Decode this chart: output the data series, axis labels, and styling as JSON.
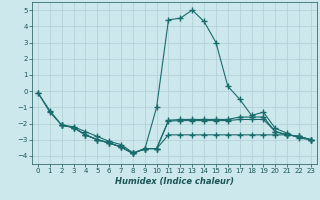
{
  "background_color": "#cce8ec",
  "grid_color": "#b0ced4",
  "line_color": "#1a6b6b",
  "line_width": 0.8,
  "marker": "+",
  "marker_size": 4,
  "marker_edge_width": 1.0,
  "xlabel": "Humidex (Indice chaleur)",
  "xlim": [
    -0.5,
    23.5
  ],
  "ylim": [
    -4.5,
    5.5
  ],
  "yticks": [
    -4,
    -3,
    -2,
    -1,
    0,
    1,
    2,
    3,
    4,
    5
  ],
  "xticks": [
    0,
    1,
    2,
    3,
    4,
    5,
    6,
    7,
    8,
    9,
    10,
    11,
    12,
    13,
    14,
    15,
    16,
    17,
    18,
    19,
    20,
    21,
    22,
    23
  ],
  "series": [
    {
      "x": [
        0,
        1,
        2,
        3,
        4,
        5,
        6,
        7,
        8,
        9,
        10,
        11,
        12,
        13,
        14,
        15,
        16,
        17,
        18,
        19,
        20,
        21,
        22,
        23
      ],
      "y": [
        -0.1,
        -1.2,
        -2.1,
        -2.2,
        -2.5,
        -2.8,
        -3.1,
        -3.3,
        -3.8,
        -3.6,
        -1.0,
        4.4,
        4.5,
        5.0,
        4.3,
        3.0,
        0.3,
        -0.5,
        -1.5,
        -1.3,
        -2.3,
        -2.6,
        -2.9,
        -3.0
      ]
    },
    {
      "x": [
        0,
        1,
        2,
        3,
        4,
        5,
        6,
        7,
        8,
        9,
        10,
        11,
        12,
        13,
        14,
        15,
        16,
        17,
        18,
        19,
        20,
        21,
        22,
        23
      ],
      "y": [
        -0.1,
        -1.3,
        -2.1,
        -2.25,
        -2.7,
        -3.0,
        -3.2,
        -3.45,
        -3.85,
        -3.55,
        -3.55,
        -1.8,
        -1.75,
        -1.75,
        -1.75,
        -1.75,
        -1.75,
        -1.6,
        -1.6,
        -1.6,
        -2.5,
        -2.7,
        -2.8,
        -3.0
      ]
    },
    {
      "x": [
        2,
        3,
        4,
        5,
        6,
        7,
        8,
        9,
        10,
        11,
        12,
        13,
        14,
        15,
        16,
        17,
        18,
        19,
        20,
        21,
        22,
        23
      ],
      "y": [
        -2.1,
        -2.25,
        -2.7,
        -3.0,
        -3.2,
        -3.45,
        -3.85,
        -3.55,
        -3.55,
        -1.85,
        -1.82,
        -1.82,
        -1.82,
        -1.82,
        -1.82,
        -1.75,
        -1.75,
        -1.75,
        -2.5,
        -2.7,
        -2.8,
        -3.0
      ]
    },
    {
      "x": [
        2,
        3,
        4,
        5,
        6,
        7,
        8,
        9,
        10,
        11,
        12,
        13,
        14,
        15,
        16,
        17,
        18,
        19,
        20,
        21,
        22,
        23
      ],
      "y": [
        -2.1,
        -2.25,
        -2.7,
        -3.0,
        -3.2,
        -3.45,
        -3.85,
        -3.55,
        -3.55,
        -2.7,
        -2.7,
        -2.7,
        -2.7,
        -2.7,
        -2.7,
        -2.7,
        -2.7,
        -2.7,
        -2.7,
        -2.7,
        -2.8,
        -3.0
      ]
    }
  ]
}
